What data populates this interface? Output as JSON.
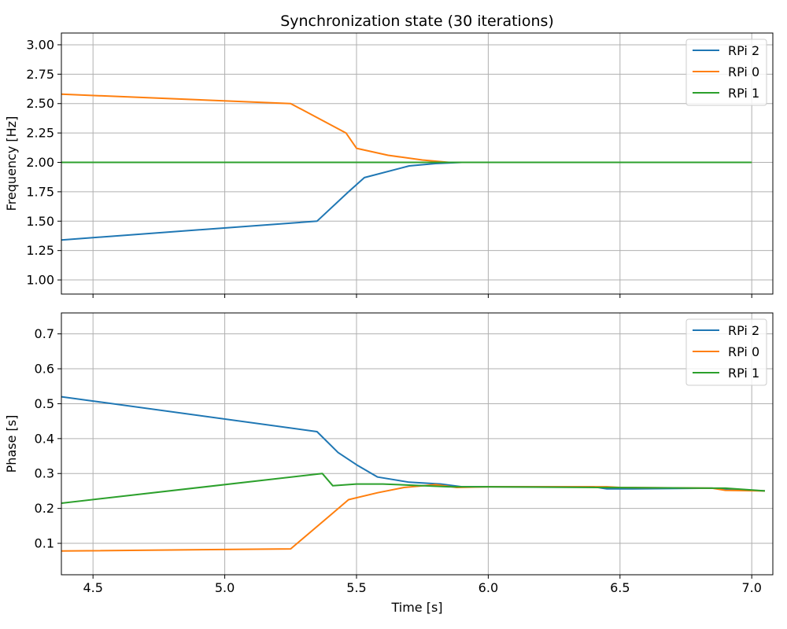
{
  "figure_title": "Synchronization state (30 iterations)",
  "colors": {
    "RPi 2": "#1f77b4",
    "RPi 0": "#ff7f0e",
    "RPi 1": "#2ca02c"
  },
  "chart_data": [
    {
      "type": "line",
      "title": "Synchronization state (30 iterations)",
      "xlabel": "",
      "ylabel": "Frequency [Hz]",
      "xlim": [
        4.38,
        7.08
      ],
      "ylim": [
        0.88,
        3.1
      ],
      "xticks": [
        4.5,
        5.0,
        5.5,
        6.0,
        6.5,
        7.0
      ],
      "xtick_labels_visible": false,
      "yticks": [
        1.0,
        1.25,
        1.5,
        1.75,
        2.0,
        2.25,
        2.5,
        2.75,
        3.0
      ],
      "ytick_labels": [
        "1.00",
        "1.25",
        "1.50",
        "1.75",
        "2.00",
        "2.25",
        "2.50",
        "2.75",
        "3.00"
      ],
      "grid": true,
      "legend_position": "top-right",
      "series": [
        {
          "name": "RPi 2",
          "x": [
            4.38,
            5.35,
            5.47,
            5.53,
            5.7,
            5.8,
            5.9,
            7.0
          ],
          "y": [
            1.34,
            1.5,
            1.75,
            1.87,
            1.97,
            1.99,
            2.0,
            2.0
          ]
        },
        {
          "name": "RPi 0",
          "x": [
            4.38,
            5.25,
            5.46,
            5.5,
            5.62,
            5.75,
            5.85,
            5.95,
            7.0
          ],
          "y": [
            2.58,
            2.5,
            2.25,
            2.12,
            2.06,
            2.02,
            2.0,
            2.0,
            2.0
          ]
        },
        {
          "name": "RPi 1",
          "x": [
            4.38,
            7.0
          ],
          "y": [
            2.0,
            2.0
          ]
        }
      ]
    },
    {
      "type": "line",
      "title": "",
      "xlabel": "Time [s]",
      "ylabel": "Phase [s]",
      "xlim": [
        4.38,
        7.08
      ],
      "ylim": [
        0.01,
        0.76
      ],
      "xticks": [
        4.5,
        5.0,
        5.5,
        6.0,
        6.5,
        7.0
      ],
      "xtick_labels": [
        "4.5",
        "5.0",
        "5.5",
        "6.0",
        "6.5",
        "7.0"
      ],
      "yticks": [
        0.1,
        0.2,
        0.3,
        0.4,
        0.5,
        0.6,
        0.7
      ],
      "ytick_labels": [
        "0.1",
        "0.2",
        "0.3",
        "0.4",
        "0.5",
        "0.6",
        "0.7"
      ],
      "grid": true,
      "legend_position": "top-right",
      "series": [
        {
          "name": "RPi 2",
          "x": [
            4.38,
            5.35,
            5.43,
            5.5,
            5.58,
            5.7,
            5.82,
            5.9,
            6.0,
            6.4,
            6.45,
            6.55,
            6.85,
            6.9,
            7.05
          ],
          "y": [
            0.52,
            0.42,
            0.36,
            0.325,
            0.29,
            0.275,
            0.27,
            0.262,
            0.262,
            0.262,
            0.256,
            0.256,
            0.258,
            0.255,
            0.25
          ]
        },
        {
          "name": "RPi 0",
          "x": [
            4.38,
            5.25,
            5.4,
            5.47,
            5.58,
            5.68,
            5.8,
            5.88,
            6.0,
            6.45,
            6.5,
            6.85,
            6.9,
            7.05
          ],
          "y": [
            0.078,
            0.084,
            0.18,
            0.225,
            0.245,
            0.26,
            0.268,
            0.26,
            0.262,
            0.262,
            0.26,
            0.258,
            0.252,
            0.25
          ]
        },
        {
          "name": "RPi 1",
          "x": [
            4.38,
            5.37,
            5.41,
            5.5,
            5.6,
            5.85,
            6.0,
            6.85,
            6.9,
            7.05
          ],
          "y": [
            0.215,
            0.3,
            0.265,
            0.27,
            0.27,
            0.262,
            0.262,
            0.258,
            0.258,
            0.25
          ]
        }
      ]
    }
  ]
}
